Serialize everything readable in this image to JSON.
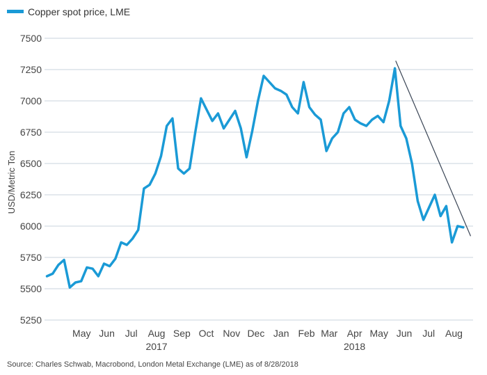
{
  "chart_data": {
    "type": "line",
    "title": "",
    "xlabel": "",
    "ylabel": "USD/Metric Ton",
    "ylim": [
      5250,
      7500
    ],
    "yticks": [
      5250,
      5500,
      5750,
      6000,
      6250,
      6500,
      6750,
      7000,
      7250,
      7500
    ],
    "grid": "horizontal",
    "legend_position": "top-left",
    "x_month_labels": [
      "May",
      "Jun",
      "Jul",
      "Aug",
      "Sep",
      "Oct",
      "Nov",
      "Dec",
      "Jan",
      "Feb",
      "Mar",
      "Apr",
      "May",
      "Jun",
      "Jul",
      "Aug"
    ],
    "x_year_labels": [
      {
        "label": "2017",
        "under": "Aug"
      },
      {
        "label": "2018",
        "under": "Apr"
      }
    ],
    "series": [
      {
        "name": "Copper spot price, LME",
        "color": "#1a9ad6",
        "x": [
          "2017-04-03",
          "2017-04-10",
          "2017-04-17",
          "2017-04-24",
          "2017-05-01",
          "2017-05-08",
          "2017-05-15",
          "2017-05-22",
          "2017-05-29",
          "2017-06-05",
          "2017-06-12",
          "2017-06-19",
          "2017-06-26",
          "2017-07-03",
          "2017-07-10",
          "2017-07-17",
          "2017-07-24",
          "2017-07-31",
          "2017-08-07",
          "2017-08-14",
          "2017-08-21",
          "2017-08-28",
          "2017-09-04",
          "2017-09-11",
          "2017-09-18",
          "2017-09-25",
          "2017-10-02",
          "2017-10-09",
          "2017-10-16",
          "2017-10-23",
          "2017-10-30",
          "2017-11-06",
          "2017-11-13",
          "2017-11-20",
          "2017-11-27",
          "2017-12-04",
          "2017-12-11",
          "2017-12-18",
          "2017-12-25",
          "2018-01-01",
          "2018-01-08",
          "2018-01-15",
          "2018-01-22",
          "2018-01-29",
          "2018-02-05",
          "2018-02-12",
          "2018-02-19",
          "2018-02-26",
          "2018-03-05",
          "2018-03-12",
          "2018-03-19",
          "2018-03-26",
          "2018-04-02",
          "2018-04-09",
          "2018-04-16",
          "2018-04-23",
          "2018-04-30",
          "2018-05-07",
          "2018-05-14",
          "2018-05-21",
          "2018-05-28",
          "2018-06-04",
          "2018-06-11",
          "2018-06-18",
          "2018-06-25",
          "2018-07-02",
          "2018-07-09",
          "2018-07-16",
          "2018-07-23",
          "2018-07-30",
          "2018-08-06",
          "2018-08-13",
          "2018-08-20",
          "2018-08-27"
        ],
        "values": [
          5600,
          5620,
          5690,
          5730,
          5510,
          5550,
          5560,
          5670,
          5660,
          5600,
          5700,
          5680,
          5740,
          5870,
          5850,
          5900,
          5970,
          6300,
          6330,
          6420,
          6560,
          6800,
          6860,
          6460,
          6420,
          6460,
          6750,
          7020,
          6930,
          6840,
          6900,
          6780,
          6850,
          6920,
          6780,
          6550,
          6760,
          7000,
          7200,
          7150,
          7100,
          7080,
          7050,
          6950,
          6900,
          7150,
          6950,
          6890,
          6850,
          6600,
          6700,
          6750,
          6900,
          6950,
          6850,
          6820,
          6800,
          6850,
          6880,
          6830,
          7000,
          7260,
          6800,
          6700,
          6500,
          6200,
          6050,
          6150,
          6250,
          6080,
          6160,
          5870,
          6000,
          5990
        ]
      }
    ],
    "annotations": [
      {
        "type": "trendline",
        "from": {
          "x": "2018-06-05",
          "y": 7320
        },
        "to": {
          "x": "2018-09-05",
          "y": 5920
        },
        "color": "#3a4555"
      }
    ]
  },
  "footer": {
    "source": "Source: Charles Schwab, Macrobond, London Metal Exchange (LME) as of 8/28/2018"
  }
}
